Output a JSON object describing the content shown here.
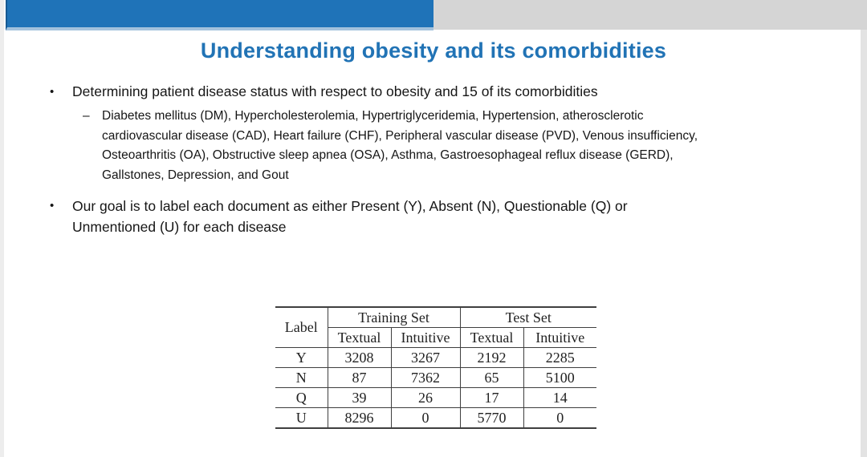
{
  "slide": {
    "title": "Understanding obesity and its comorbidities",
    "accent_blue": "#1f73b8",
    "title_blue": "#2173b5",
    "header_gray": "#d5d5d5"
  },
  "bullets": [
    {
      "marker": "•",
      "text": "Determining patient disease status with respect to obesity and 15 of its comorbidities",
      "sub": [
        {
          "marker": "–",
          "text": "Diabetes mellitus (DM), Hypercholesterolemia, Hypertriglyceridemia, Hypertension, atherosclerotic\ncardiovascular disease (CAD), Heart failure (CHF), Peripheral vascular disease (PVD), Venous insufficiency,\nOsteoarthritis (OA), Obstructive sleep apnea (OSA), Asthma, Gastroesophageal reflux disease (GERD),\nGallstones, Depression, and Gout"
        }
      ]
    },
    {
      "marker": "•",
      "text": "Our goal is to label each document as either Present (Y), Absent (N), Questionable (Q) or\nUnmentioned (U) for each disease"
    }
  ],
  "table": {
    "label_header": "Label",
    "group_headers": [
      "Training Set",
      "Test Set"
    ],
    "sub_headers": [
      "Textual",
      "Intuitive",
      "Textual",
      "Intuitive"
    ],
    "rows": [
      {
        "label": "Y",
        "values": [
          "3208",
          "3267",
          "2192",
          "2285"
        ]
      },
      {
        "label": "N",
        "values": [
          "87",
          "7362",
          "65",
          "5100"
        ]
      },
      {
        "label": "Q",
        "values": [
          "39",
          "26",
          "17",
          "14"
        ]
      },
      {
        "label": "U",
        "values": [
          "8296",
          "0",
          "5770",
          "0"
        ]
      }
    ]
  }
}
